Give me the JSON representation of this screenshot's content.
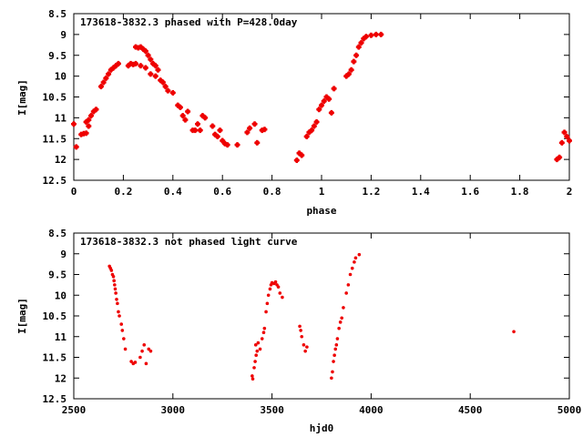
{
  "chart_data": [
    {
      "type": "scatter",
      "title": "173618-3832.3 phased with P=428.0day",
      "xlabel": "phase",
      "ylabel": "I[mag]",
      "xlim": [
        0,
        2
      ],
      "ylim": [
        12.5,
        8.5
      ],
      "y_inverted": true,
      "x_ticks": [
        "0",
        "0.2",
        "0.4",
        "0.6",
        "0.8",
        "1",
        "1.2",
        "1.4",
        "1.6",
        "1.8",
        "2"
      ],
      "y_ticks": [
        "8.5",
        "9",
        "9.5",
        "10",
        "10.5",
        "11",
        "11.5",
        "12",
        "12.5"
      ],
      "marker_color": "#ee0000",
      "marker": "plus",
      "points": [
        [
          0.0,
          11.15
        ],
        [
          0.01,
          11.7
        ],
        [
          0.03,
          11.4
        ],
        [
          0.04,
          11.38
        ],
        [
          0.05,
          11.37
        ],
        [
          0.05,
          11.1
        ],
        [
          0.06,
          11.05
        ],
        [
          0.06,
          11.2
        ],
        [
          0.07,
          10.95
        ],
        [
          0.08,
          10.85
        ],
        [
          0.09,
          10.8
        ],
        [
          0.11,
          10.25
        ],
        [
          0.12,
          10.15
        ],
        [
          0.13,
          10.05
        ],
        [
          0.14,
          9.95
        ],
        [
          0.15,
          9.85
        ],
        [
          0.16,
          9.8
        ],
        [
          0.17,
          9.75
        ],
        [
          0.18,
          9.7
        ],
        [
          0.22,
          9.75
        ],
        [
          0.23,
          9.7
        ],
        [
          0.24,
          9.72
        ],
        [
          0.25,
          9.7
        ],
        [
          0.25,
          9.3
        ],
        [
          0.26,
          9.32
        ],
        [
          0.27,
          9.3
        ],
        [
          0.27,
          9.75
        ],
        [
          0.28,
          9.35
        ],
        [
          0.29,
          9.4
        ],
        [
          0.29,
          9.8
        ],
        [
          0.3,
          9.5
        ],
        [
          0.31,
          9.6
        ],
        [
          0.31,
          9.95
        ],
        [
          0.32,
          9.7
        ],
        [
          0.33,
          10.0
        ],
        [
          0.33,
          9.75
        ],
        [
          0.34,
          9.85
        ],
        [
          0.35,
          10.1
        ],
        [
          0.36,
          10.15
        ],
        [
          0.37,
          10.25
        ],
        [
          0.38,
          10.35
        ],
        [
          0.4,
          10.4
        ],
        [
          0.42,
          10.7
        ],
        [
          0.43,
          10.75
        ],
        [
          0.44,
          10.95
        ],
        [
          0.45,
          11.05
        ],
        [
          0.46,
          10.85
        ],
        [
          0.48,
          11.3
        ],
        [
          0.49,
          11.3
        ],
        [
          0.5,
          11.15
        ],
        [
          0.51,
          11.3
        ],
        [
          0.52,
          10.95
        ],
        [
          0.53,
          11.0
        ],
        [
          0.56,
          11.2
        ],
        [
          0.57,
          11.4
        ],
        [
          0.58,
          11.45
        ],
        [
          0.59,
          11.3
        ],
        [
          0.6,
          11.55
        ],
        [
          0.61,
          11.62
        ],
        [
          0.62,
          11.65
        ],
        [
          0.66,
          11.65
        ],
        [
          0.7,
          11.35
        ],
        [
          0.71,
          11.25
        ],
        [
          0.73,
          11.15
        ],
        [
          0.74,
          11.6
        ],
        [
          0.76,
          11.3
        ],
        [
          0.77,
          11.28
        ],
        [
          0.9,
          12.02
        ],
        [
          0.91,
          11.85
        ],
        [
          0.92,
          11.9
        ],
        [
          0.94,
          11.45
        ],
        [
          0.95,
          11.35
        ],
        [
          0.96,
          11.3
        ],
        [
          0.97,
          11.2
        ],
        [
          0.98,
          11.1
        ],
        [
          0.99,
          10.8
        ],
        [
          1.0,
          10.7
        ],
        [
          1.01,
          10.6
        ],
        [
          1.02,
          10.5
        ],
        [
          1.03,
          10.55
        ],
        [
          1.04,
          10.88
        ],
        [
          1.05,
          10.3
        ],
        [
          1.1,
          10.0
        ],
        [
          1.11,
          9.95
        ],
        [
          1.12,
          9.85
        ],
        [
          1.13,
          9.65
        ],
        [
          1.14,
          9.5
        ],
        [
          1.15,
          9.3
        ],
        [
          1.16,
          9.2
        ],
        [
          1.17,
          9.1
        ],
        [
          1.18,
          9.05
        ],
        [
          1.2,
          9.02
        ],
        [
          1.22,
          9.0
        ],
        [
          1.24,
          9.0
        ],
        [
          1.95,
          12.0
        ],
        [
          1.96,
          11.95
        ],
        [
          1.97,
          11.6
        ],
        [
          1.98,
          11.35
        ],
        [
          1.99,
          11.45
        ],
        [
          2.0,
          11.55
        ]
      ]
    },
    {
      "type": "scatter",
      "title": "173618-3832.3 not phased light curve",
      "xlabel": "hjd0",
      "ylabel": "I[mag]",
      "xlim": [
        2500,
        5000
      ],
      "ylim": [
        12.5,
        8.5
      ],
      "y_inverted": true,
      "x_ticks": [
        "2500",
        "3000",
        "3500",
        "4000",
        "4500",
        "5000"
      ],
      "y_ticks": [
        "8.5",
        "9",
        "9.5",
        "10",
        "10.5",
        "11",
        "11.5",
        "12",
        "12.5"
      ],
      "marker_color": "#ee0000",
      "marker": "dot",
      "points": [
        [
          2680,
          9.3
        ],
        [
          2685,
          9.35
        ],
        [
          2690,
          9.4
        ],
        [
          2695,
          9.5
        ],
        [
          2700,
          9.55
        ],
        [
          2703,
          9.65
        ],
        [
          2706,
          9.75
        ],
        [
          2709,
          9.85
        ],
        [
          2712,
          9.95
        ],
        [
          2716,
          10.1
        ],
        [
          2720,
          10.2
        ],
        [
          2725,
          10.4
        ],
        [
          2730,
          10.5
        ],
        [
          2740,
          10.7
        ],
        [
          2745,
          10.85
        ],
        [
          2752,
          11.05
        ],
        [
          2760,
          11.3
        ],
        [
          2790,
          11.6
        ],
        [
          2800,
          11.65
        ],
        [
          2810,
          11.62
        ],
        [
          2835,
          11.5
        ],
        [
          2845,
          11.35
        ],
        [
          2855,
          11.2
        ],
        [
          2865,
          11.65
        ],
        [
          2878,
          11.3
        ],
        [
          2888,
          11.35
        ],
        [
          3400,
          11.95
        ],
        [
          3403,
          12.02
        ],
        [
          3410,
          11.75
        ],
        [
          3415,
          11.6
        ],
        [
          3420,
          11.45
        ],
        [
          3425,
          11.35
        ],
        [
          3418,
          11.2
        ],
        [
          3430,
          11.15
        ],
        [
          3440,
          11.3
        ],
        [
          3450,
          11.05
        ],
        [
          3458,
          10.9
        ],
        [
          3462,
          10.8
        ],
        [
          3470,
          10.4
        ],
        [
          3476,
          10.2
        ],
        [
          3482,
          10.0
        ],
        [
          3490,
          9.85
        ],
        [
          3495,
          9.75
        ],
        [
          3500,
          9.7
        ],
        [
          3510,
          9.72
        ],
        [
          3518,
          9.68
        ],
        [
          3525,
          9.75
        ],
        [
          3532,
          9.8
        ],
        [
          3540,
          9.95
        ],
        [
          3552,
          10.05
        ],
        [
          3640,
          10.75
        ],
        [
          3645,
          10.85
        ],
        [
          3650,
          11.0
        ],
        [
          3660,
          11.2
        ],
        [
          3668,
          11.35
        ],
        [
          3676,
          11.25
        ],
        [
          3800,
          12.0
        ],
        [
          3805,
          11.85
        ],
        [
          3810,
          11.6
        ],
        [
          3815,
          11.45
        ],
        [
          3820,
          11.3
        ],
        [
          3825,
          11.2
        ],
        [
          3830,
          11.05
        ],
        [
          3838,
          10.8
        ],
        [
          3845,
          10.65
        ],
        [
          3852,
          10.55
        ],
        [
          3860,
          10.3
        ],
        [
          3875,
          9.95
        ],
        [
          3885,
          9.75
        ],
        [
          3895,
          9.5
        ],
        [
          3905,
          9.35
        ],
        [
          3915,
          9.2
        ],
        [
          3922,
          9.1
        ],
        [
          3940,
          9.02
        ],
        [
          4720,
          10.88
        ]
      ]
    }
  ]
}
